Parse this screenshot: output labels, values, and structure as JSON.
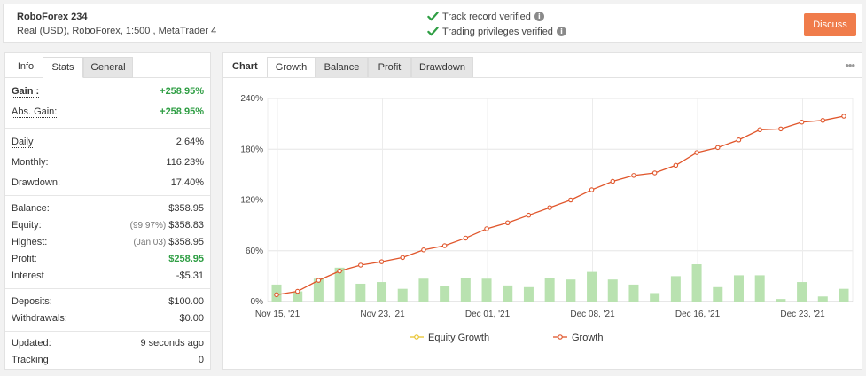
{
  "header": {
    "account_name": "RoboForex 234",
    "account_type": "Real (USD),",
    "broker": "RoboForex",
    "leverage_platform": ", 1:500 , MetaTrader 4",
    "verified_1": "Track record verified",
    "verified_2": "Trading privileges verified",
    "info_glyph": "i",
    "discuss_label": "Discuss",
    "colors": {
      "accent": "#f07c4b",
      "check": "#2f9e44"
    }
  },
  "stats_tabs": [
    "Info",
    "Stats",
    "General"
  ],
  "stats": {
    "gain": {
      "label": "Gain :",
      "value": "+258.95%"
    },
    "abs_gain": {
      "label": "Abs. Gain:",
      "value": "+258.95%"
    },
    "daily": {
      "label": "Daily",
      "value": "2.64%"
    },
    "monthly": {
      "label": "Monthly:",
      "value": "116.23%"
    },
    "drawdown": {
      "label": "Drawdown:",
      "value": "17.40%"
    },
    "balance": {
      "label": "Balance:",
      "value": "$358.95"
    },
    "equity": {
      "label": "Equity:",
      "pre": "(99.97%)",
      "value": "$358.83"
    },
    "highest": {
      "label": "Highest:",
      "pre": "(Jan 03)",
      "value": "$358.95"
    },
    "profit": {
      "label": "Profit:",
      "value": "$258.95"
    },
    "interest": {
      "label": "Interest",
      "value": "-$5.31"
    },
    "deposits": {
      "label": "Deposits:",
      "value": "$100.00"
    },
    "withdrawals": {
      "label": "Withdrawals:",
      "value": "$0.00"
    },
    "updated": {
      "label": "Updated:",
      "value": "9 seconds ago"
    },
    "tracking": {
      "label": "Tracking",
      "value": "0"
    }
  },
  "chart_panel": {
    "title": "Chart",
    "tabs": [
      "Growth",
      "Balance",
      "Profit",
      "Drawdown"
    ],
    "more_glyph": "•••"
  },
  "chart_data": {
    "type": "line",
    "x_tick_labels": [
      "Nov 15, '21",
      "Nov 23, '21",
      "Dec 01, '21",
      "Dec 08, '21",
      "Dec 16, '21",
      "Dec 23, '21"
    ],
    "y_tick_labels": [
      "0%",
      "60%",
      "120%",
      "180%",
      "240%"
    ],
    "ylim": [
      0,
      240
    ],
    "grid": true,
    "legend_position": "bottom",
    "series": [
      {
        "name": "Equity Growth",
        "color": "#e8c22c",
        "values": []
      },
      {
        "name": "Growth",
        "color": "#e0552a",
        "values": [
          8,
          12,
          25,
          36,
          43,
          47,
          52,
          61,
          66,
          75,
          86,
          93,
          102,
          111,
          120,
          132,
          142,
          149,
          152,
          161,
          176,
          182,
          191,
          203,
          204,
          212,
          214,
          219
        ]
      }
    ],
    "bars": {
      "color": "#b9e2b0",
      "values": [
        20,
        12,
        27,
        40,
        21,
        23,
        15,
        27,
        18,
        28,
        27,
        19,
        17,
        28,
        26,
        35,
        26,
        20,
        10,
        30,
        44,
        17,
        31,
        31,
        3,
        23,
        6,
        15
      ]
    }
  }
}
